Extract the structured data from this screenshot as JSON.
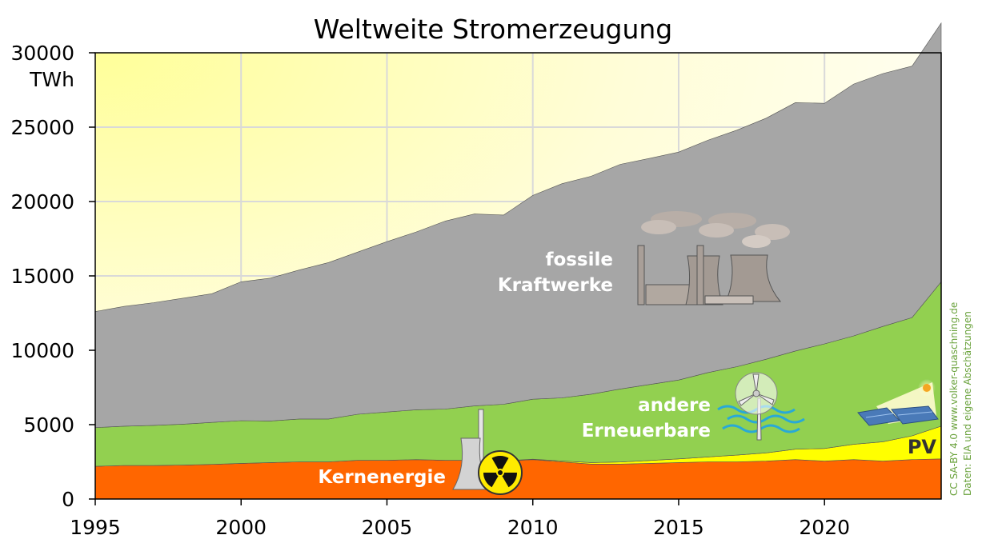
{
  "chart_data": {
    "type": "area",
    "stacked": true,
    "title": "Weltweite Stromerzeugung",
    "ylabel_unit": "TWh",
    "xlim": [
      1995,
      2024
    ],
    "ylim": [
      0,
      30000
    ],
    "x_ticks": [
      "1995",
      "2000",
      "2005",
      "2010",
      "2015",
      "2020"
    ],
    "y_ticks": [
      "0",
      "5000",
      "10000",
      "15000",
      "20000",
      "25000",
      "30000"
    ],
    "grid": true,
    "x": [
      1995,
      1996,
      1997,
      1998,
      1999,
      2000,
      2001,
      2002,
      2003,
      2004,
      2005,
      2006,
      2007,
      2008,
      2009,
      2010,
      2011,
      2012,
      2013,
      2014,
      2015,
      2016,
      2017,
      2018,
      2019,
      2020,
      2021,
      2022,
      2023,
      2024
    ],
    "series": [
      {
        "name": "Kernenergie",
        "color": "#ff6600",
        "values": [
          2200,
          2250,
          2250,
          2280,
          2330,
          2400,
          2450,
          2500,
          2500,
          2600,
          2600,
          2650,
          2600,
          2600,
          2550,
          2650,
          2500,
          2350,
          2350,
          2400,
          2450,
          2500,
          2500,
          2550,
          2650,
          2550,
          2650,
          2550,
          2650,
          2700
        ]
      },
      {
        "name": "PV",
        "color": "#ffff00",
        "values": [
          0,
          0,
          0,
          0,
          0,
          0,
          0,
          0,
          0,
          0,
          0,
          0,
          0,
          10,
          20,
          30,
          60,
          100,
          140,
          190,
          250,
          330,
          450,
          550,
          700,
          850,
          1030,
          1300,
          1600,
          2200
        ]
      },
      {
        "name": "andere Erneuerbare",
        "color": "#92d050",
        "values": [
          2600,
          2650,
          2700,
          2750,
          2820,
          2870,
          2800,
          2880,
          2880,
          3100,
          3250,
          3350,
          3450,
          3650,
          3800,
          4030,
          4240,
          4600,
          4910,
          5110,
          5300,
          5670,
          5950,
          6300,
          6600,
          7030,
          7290,
          7750,
          7950,
          9700
        ]
      },
      {
        "name": "fossile Kraftwerke",
        "color": "#a6a6a6",
        "values": [
          7800,
          8050,
          8250,
          8470,
          8650,
          9330,
          9600,
          10020,
          10520,
          10900,
          11450,
          11950,
          12640,
          12900,
          12720,
          13700,
          14400,
          14650,
          15100,
          15200,
          15320,
          15620,
          15900,
          16200,
          16700,
          16170,
          16930,
          17000,
          16900,
          17400
        ]
      }
    ]
  },
  "labels": {
    "fossil_line1": "fossile",
    "fossil_line2": "Kraftwerke",
    "renew_line1": "andere",
    "renew_line2": "Erneuerbare",
    "nuclear": "Kernenergie",
    "pv": "PV"
  },
  "credits": {
    "line1": "CC SA-BY 4.0   www.volker-quaschning.de",
    "line2": "Daten: EIA und eigene Abschätzungen"
  },
  "colors": {
    "sky_top_left": "#ffff99",
    "sky_light": "#ffffee",
    "grid": "#d9d9d9",
    "credit": "#6aa23c"
  },
  "icons": [
    "power-plant-icon",
    "wind-turbine-icon",
    "solar-panel-icon",
    "nuclear-plant-icon",
    "radiation-icon"
  ]
}
